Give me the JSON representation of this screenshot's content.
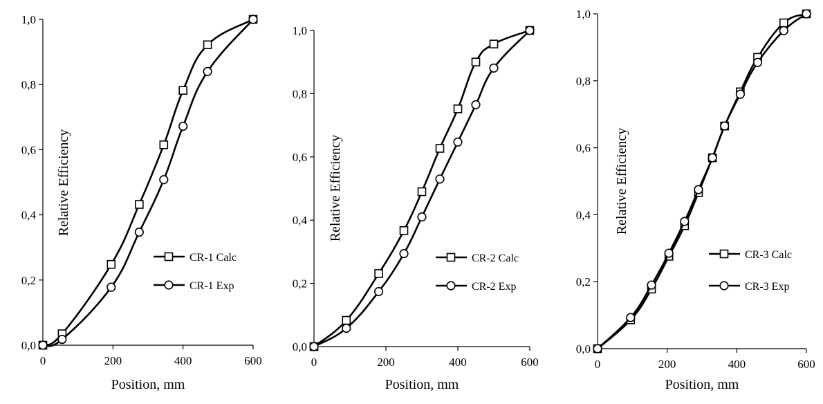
{
  "chart_data": [
    {
      "type": "line",
      "xlabel": "Position, mm",
      "ylabel": "Relative Efficiency",
      "xlim": [
        0,
        600
      ],
      "ylim": [
        0,
        1.0
      ],
      "xticks": [
        "0",
        "200",
        "400",
        "600"
      ],
      "yticks": [
        "0,0",
        "0,2",
        "0,4",
        "0,6",
        "0,8",
        "1,0"
      ],
      "grid": false,
      "legend_position": "right",
      "series": [
        {
          "name": "CR-1 Calc",
          "marker": "square",
          "x": [
            0,
            55,
            195,
            275,
            345,
            400,
            470,
            600
          ],
          "y": [
            0.0,
            0.035,
            0.248,
            0.432,
            0.615,
            0.782,
            0.922,
            1.0
          ]
        },
        {
          "name": "CR-1 Exp",
          "marker": "circle",
          "x": [
            0,
            55,
            195,
            275,
            345,
            400,
            470,
            600
          ],
          "y": [
            0.0,
            0.018,
            0.178,
            0.347,
            0.508,
            0.672,
            0.84,
            1.0
          ]
        }
      ]
    },
    {
      "type": "line",
      "xlabel": "Position, mm",
      "ylabel": "Relative Efficiency",
      "xlim": [
        0,
        600
      ],
      "ylim": [
        0,
        1.0
      ],
      "xticks": [
        "0",
        "200",
        "400",
        "600"
      ],
      "yticks": [
        "0,0",
        "0,2",
        "0,4",
        "0,6",
        "0,8",
        "1,0"
      ],
      "grid": false,
      "legend_position": "right",
      "series": [
        {
          "name": "CR-2 Calc",
          "marker": "square",
          "x": [
            0,
            90,
            180,
            250,
            300,
            350,
            400,
            450,
            500,
            600
          ],
          "y": [
            0.0,
            0.083,
            0.231,
            0.367,
            0.49,
            0.627,
            0.752,
            0.9,
            0.957,
            1.0
          ]
        },
        {
          "name": "CR-2 Exp",
          "marker": "circle",
          "x": [
            0,
            90,
            180,
            250,
            300,
            350,
            400,
            450,
            500,
            600
          ],
          "y": [
            0.0,
            0.058,
            0.174,
            0.294,
            0.41,
            0.53,
            0.647,
            0.765,
            0.881,
            1.0
          ]
        }
      ]
    },
    {
      "type": "line",
      "xlabel": "Position, mm",
      "ylabel": "Relative Efficiency",
      "xlim": [
        0,
        600
      ],
      "ylim": [
        0,
        1.0
      ],
      "xticks": [
        "0",
        "200",
        "400",
        "600"
      ],
      "yticks": [
        "0,0",
        "0,2",
        "0,4",
        "0,6",
        "0,8",
        "1,0"
      ],
      "grid": false,
      "legend_position": "right",
      "series": [
        {
          "name": "CR-3 Calc",
          "marker": "square",
          "x": [
            0,
            95,
            155,
            205,
            250,
            290,
            330,
            365,
            410,
            460,
            535,
            600
          ],
          "y": [
            0.0,
            0.086,
            0.178,
            0.276,
            0.367,
            0.466,
            0.57,
            0.665,
            0.767,
            0.87,
            0.973,
            1.0
          ]
        },
        {
          "name": "CR-3 Exp",
          "marker": "circle",
          "x": [
            0,
            95,
            155,
            205,
            250,
            290,
            330,
            365,
            410,
            460,
            535,
            600
          ],
          "y": [
            0.0,
            0.093,
            0.19,
            0.285,
            0.38,
            0.475,
            0.57,
            0.665,
            0.76,
            0.855,
            0.95,
            1.0
          ]
        }
      ]
    }
  ]
}
